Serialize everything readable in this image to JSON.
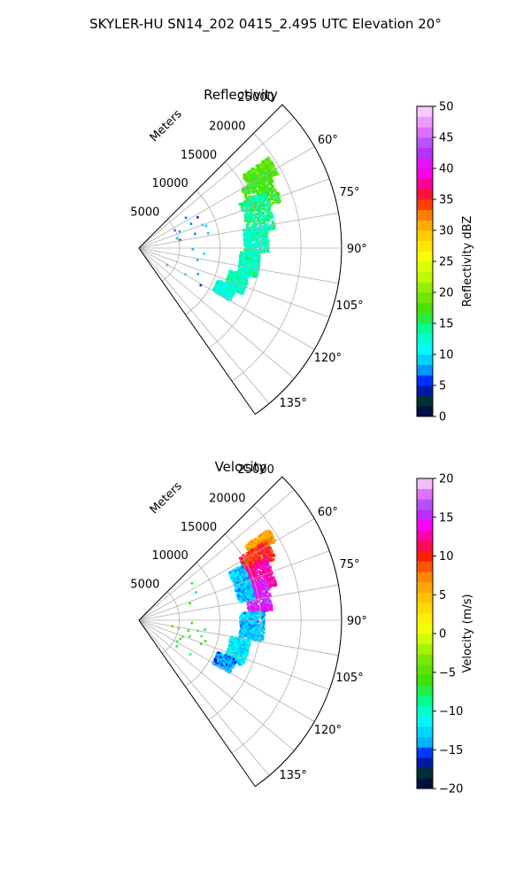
{
  "figure_title": "SKYLER-HU  SN14_202  0415_2.495 UTC Elevation 20°",
  "chart_data": [
    {
      "type": "polar-sector",
      "title": "Reflectivity",
      "range_label": "Meters",
      "range_ticks": [
        5000,
        10000,
        15000,
        20000,
        25000
      ],
      "range_tick_labels": [
        "5000",
        "10000",
        "15000",
        "20000",
        "25000"
      ],
      "rmax": 25000,
      "azimuth_range_deg": [
        45,
        145
      ],
      "azimuth_ticks_deg": [
        60,
        75,
        90,
        105,
        120,
        135
      ],
      "azimuth_tick_labels": [
        "60°",
        "75°",
        "90°",
        "105°",
        "120°",
        "135°"
      ],
      "grid": true,
      "colorbar": {
        "label": "Reflectivity dBZ",
        "vmin": 0,
        "vmax": 50,
        "ticks": [
          0,
          5,
          10,
          15,
          20,
          25,
          30,
          35,
          40,
          45,
          50
        ],
        "tick_labels": [
          "0",
          "5",
          "10",
          "15",
          "20",
          "25",
          "30",
          "35",
          "40",
          "45",
          "50"
        ],
        "colormap": "pyart_HomeyerRainbow",
        "stops": [
          [
            0,
            "#00004a"
          ],
          [
            3,
            "#003b2e"
          ],
          [
            5,
            "#0000ff"
          ],
          [
            8,
            "#00b4ff"
          ],
          [
            11,
            "#00ffff"
          ],
          [
            14,
            "#00ffa0"
          ],
          [
            17,
            "#40e000"
          ],
          [
            20,
            "#80e800"
          ],
          [
            23,
            "#c8ff00"
          ],
          [
            26,
            "#ffff00"
          ],
          [
            29,
            "#ffd000"
          ],
          [
            32,
            "#ff9000"
          ],
          [
            35,
            "#ff2000"
          ],
          [
            37,
            "#ff0080"
          ],
          [
            40,
            "#ff00ff"
          ],
          [
            43,
            "#a040ff"
          ],
          [
            46,
            "#e070ff"
          ],
          [
            50,
            "#ffe0ff"
          ]
        ]
      },
      "echo_regions": [
        {
          "az": [
            55,
            62
          ],
          "r": [
            15500,
            19500
          ],
          "value": 18
        },
        {
          "az": [
            60,
            72
          ],
          "r": [
            14500,
            18500
          ],
          "value": 17
        },
        {
          "az": [
            66,
            82
          ],
          "r": [
            13500,
            17000
          ],
          "value": 14
        },
        {
          "az": [
            80,
            92
          ],
          "r": [
            13000,
            16000
          ],
          "value": 13
        },
        {
          "az": [
            92,
            104
          ],
          "r": [
            12500,
            15000
          ],
          "value": 13
        },
        {
          "az": [
            104,
            114
          ],
          "r": [
            11500,
            14000
          ],
          "value": 13
        },
        {
          "az": [
            112,
            120
          ],
          "r": [
            10500,
            13000
          ],
          "value": 12
        },
        {
          "az": [
            55,
            125
          ],
          "r": [
            4000,
            9000
          ],
          "value": 8
        }
      ]
    },
    {
      "type": "polar-sector",
      "title": "Velocity",
      "range_label": "Meters",
      "range_ticks": [
        5000,
        10000,
        15000,
        20000,
        25000
      ],
      "range_tick_labels": [
        "5000",
        "10000",
        "15000",
        "20000",
        "25000"
      ],
      "rmax": 25000,
      "azimuth_range_deg": [
        45,
        145
      ],
      "azimuth_ticks_deg": [
        60,
        75,
        90,
        105,
        120,
        135
      ],
      "azimuth_tick_labels": [
        "60°",
        "75°",
        "90°",
        "105°",
        "120°",
        "135°"
      ],
      "grid": true,
      "colorbar": {
        "label": "Velocity (m/s)",
        "vmin": -20,
        "vmax": 20,
        "ticks": [
          -20,
          -15,
          -10,
          -5,
          0,
          5,
          10,
          15,
          20
        ],
        "tick_labels": [
          "−20",
          "−15",
          "−10",
          "−5",
          "0",
          "5",
          "10",
          "15",
          "20"
        ],
        "colormap": "pyart_BuDRd18",
        "stops": [
          [
            -20,
            "#00004a"
          ],
          [
            -17.5,
            "#003b2e"
          ],
          [
            -16,
            "#0000ff"
          ],
          [
            -14,
            "#00b4ff"
          ],
          [
            -11,
            "#00ffff"
          ],
          [
            -8.5,
            "#00ff80"
          ],
          [
            -6,
            "#40e000"
          ],
          [
            -3,
            "#80e800"
          ],
          [
            -1,
            "#c8ff00"
          ],
          [
            1,
            "#ffff00"
          ],
          [
            4,
            "#ffd000"
          ],
          [
            7,
            "#ff9000"
          ],
          [
            10,
            "#ff2000"
          ],
          [
            12,
            "#ff0080"
          ],
          [
            14,
            "#ff00ff"
          ],
          [
            16,
            "#a040ff"
          ],
          [
            18,
            "#e070ff"
          ],
          [
            20,
            "#ffe0ff"
          ]
        ]
      },
      "echo_regions": [
        {
          "az": [
            55,
            60
          ],
          "r": [
            16000,
            19500
          ],
          "value": 6
        },
        {
          "az": [
            58,
            66
          ],
          "r": [
            14500,
            18500
          ],
          "value": 10
        },
        {
          "az": [
            64,
            76
          ],
          "r": [
            14000,
            17500
          ],
          "value": 13
        },
        {
          "az": [
            72,
            86
          ],
          "r": [
            13500,
            16500
          ],
          "value": 15
        },
        {
          "az": [
            62,
            80
          ],
          "r": [
            12500,
            14500
          ],
          "value": -13
        },
        {
          "az": [
            86,
            100
          ],
          "r": [
            12500,
            15500
          ],
          "value": -13
        },
        {
          "az": [
            100,
            114
          ],
          "r": [
            11500,
            14000
          ],
          "value": -12
        },
        {
          "az": [
            112,
            120
          ],
          "r": [
            10500,
            13000
          ],
          "value": -14
        },
        {
          "az": [
            55,
            125
          ],
          "r": [
            4000,
            9000
          ],
          "value": -7
        }
      ]
    }
  ]
}
